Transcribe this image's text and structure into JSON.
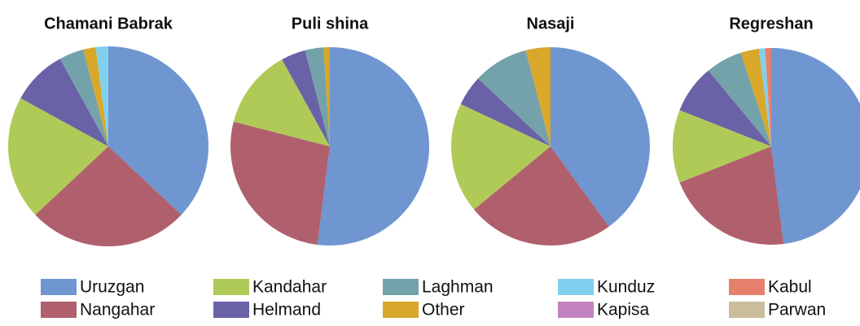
{
  "chart_data": [
    {
      "type": "pie",
      "title": "Chamani Babrak",
      "values": [
        37,
        26,
        20,
        9,
        4,
        2,
        2,
        0,
        0,
        0
      ]
    },
    {
      "type": "pie",
      "title": "Puli shina",
      "values": [
        52,
        27,
        13,
        4,
        3,
        1,
        0,
        0,
        0,
        0
      ]
    },
    {
      "type": "pie",
      "title": "Nasaji",
      "values": [
        40,
        24,
        18,
        5,
        9,
        4,
        0,
        0,
        0,
        0
      ]
    },
    {
      "type": "pie",
      "title": "Regreshan",
      "values": [
        48,
        21,
        12,
        8,
        6,
        3,
        1,
        0,
        1,
        0
      ]
    }
  ],
  "legend": {
    "labels": [
      "Uruzgan",
      "Nangahar",
      "Kandahar",
      "Helmand",
      "Laghman",
      "Other",
      "Kunduz",
      "Kapisa",
      "Kabul",
      "Parwan"
    ],
    "colors": [
      "#6f96d0",
      "#b0606c",
      "#b0ca58",
      "#6a62a6",
      "#74a2ab",
      "#d9a72a",
      "#82d0ef",
      "#c383c0",
      "#e5816a",
      "#cbbd9c"
    ]
  }
}
